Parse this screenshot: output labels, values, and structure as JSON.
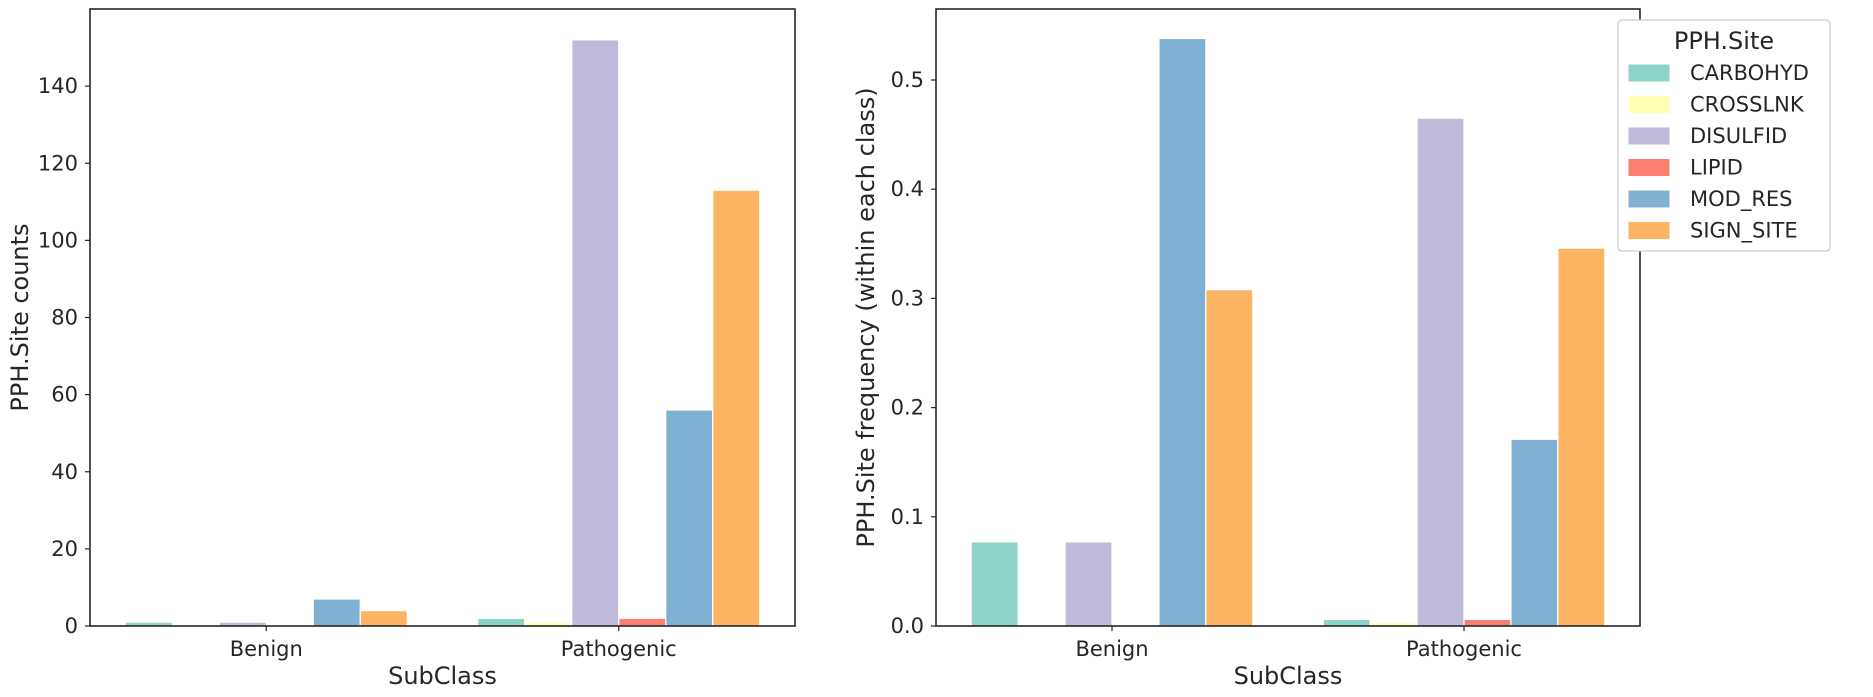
{
  "legend": {
    "title": "PPH.Site",
    "placement": "outside-right",
    "entries": [
      "CARBOHYD",
      "CROSSLNK",
      "DISULFID",
      "LIPID",
      "MOD_RES",
      "SIGN_SITE"
    ]
  },
  "colors": {
    "CARBOHYD": "#8dd3c7",
    "CROSSLNK": "#ffffb3",
    "DISULFID": "#bebada",
    "LIPID": "#fb8072",
    "MOD_RES": "#80b1d3",
    "SIGN_SITE": "#fdb462",
    "axis": "#262626"
  },
  "chart_data": [
    {
      "type": "bar",
      "title": "",
      "xlabel": "SubClass",
      "ylabel": "PPH.Site counts",
      "categories": [
        "Benign",
        "Pathogenic"
      ],
      "ylim": [
        0,
        160
      ],
      "yticks": [
        0,
        20,
        40,
        60,
        80,
        100,
        120,
        140
      ],
      "grid": false,
      "series": [
        {
          "name": "CARBOHYD",
          "values": [
            1,
            2
          ]
        },
        {
          "name": "CROSSLNK",
          "values": [
            0,
            1
          ]
        },
        {
          "name": "DISULFID",
          "values": [
            1,
            152
          ]
        },
        {
          "name": "LIPID",
          "values": [
            0,
            2
          ]
        },
        {
          "name": "MOD_RES",
          "values": [
            7,
            56
          ]
        },
        {
          "name": "SIGN_SITE",
          "values": [
            4,
            113
          ]
        }
      ]
    },
    {
      "type": "bar",
      "title": "",
      "xlabel": "SubClass",
      "ylabel": "PPH.Site frequency (within each class)",
      "categories": [
        "Benign",
        "Pathogenic"
      ],
      "ylim": [
        0,
        0.565
      ],
      "yticks": [
        "0.0",
        "0.1",
        "0.2",
        "0.3",
        "0.4",
        "0.5"
      ],
      "grid": false,
      "series": [
        {
          "name": "CARBOHYD",
          "values": [
            0.077,
            0.006
          ]
        },
        {
          "name": "CROSSLNK",
          "values": [
            0.0,
            0.003
          ]
        },
        {
          "name": "DISULFID",
          "values": [
            0.077,
            0.465
          ]
        },
        {
          "name": "LIPID",
          "values": [
            0.0,
            0.006
          ]
        },
        {
          "name": "MOD_RES",
          "values": [
            0.538,
            0.171
          ]
        },
        {
          "name": "SIGN_SITE",
          "values": [
            0.308,
            0.346
          ]
        }
      ]
    }
  ]
}
